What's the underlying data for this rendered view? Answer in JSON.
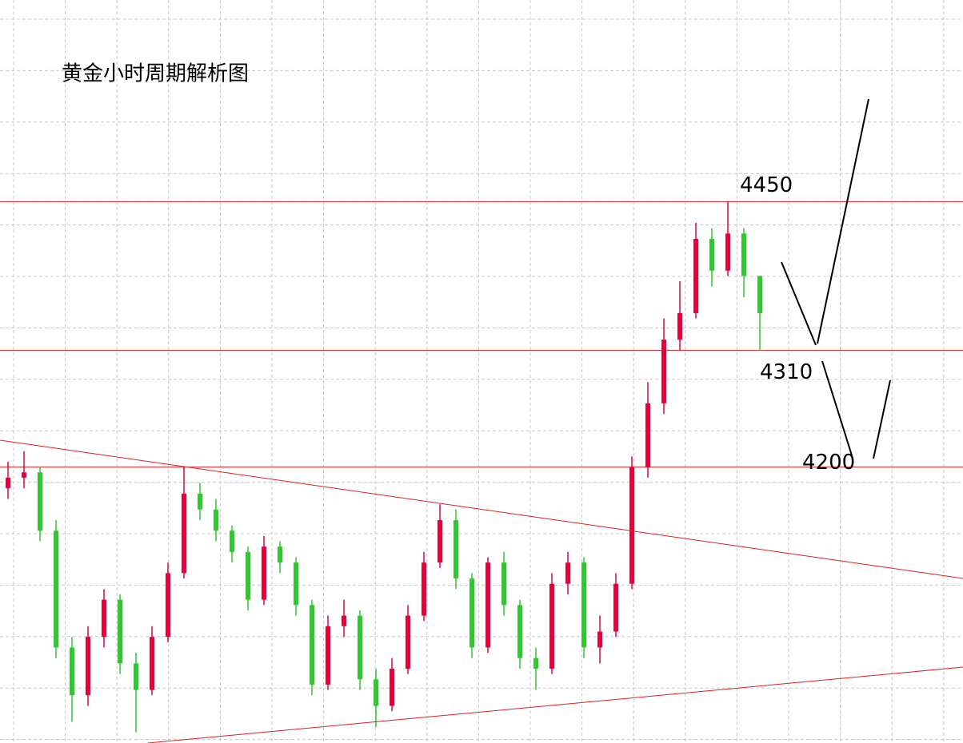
{
  "chart_data": {
    "type": "candlestick",
    "title": "黄金小时周期解析图",
    "open": [
      4180,
      4190,
      4195,
      4140,
      4030,
      3985,
      4040,
      4075,
      4015,
      3990,
      4040,
      4100,
      4175,
      4160,
      4140,
      4120,
      4075,
      4125,
      4110,
      4070,
      3995,
      4050,
      4060,
      4000,
      3975,
      4010,
      4060,
      4110,
      4150,
      4095,
      4030,
      4110,
      4070,
      4020,
      4010,
      4090,
      4110,
      4030,
      4045,
      4090,
      4200,
      4260,
      4320,
      4345,
      4415,
      4385,
      4420,
      4380
    ],
    "high": [
      4205,
      4215,
      4200,
      4150,
      4040,
      4050,
      4085,
      4080,
      4025,
      4050,
      4110,
      4200,
      4185,
      4170,
      4145,
      4125,
      4135,
      4130,
      4115,
      4075,
      4060,
      4075,
      4065,
      4010,
      4020,
      4070,
      4120,
      4165,
      4160,
      4100,
      4115,
      4120,
      4075,
      4030,
      4100,
      4120,
      4115,
      4060,
      4100,
      4210,
      4280,
      4340,
      4375,
      4430,
      4425,
      4450,
      4425,
      4380
    ],
    "low": [
      4170,
      4180,
      4130,
      4020,
      3960,
      3975,
      4030,
      4005,
      3950,
      3985,
      4035,
      4095,
      4150,
      4130,
      4110,
      4065,
      4070,
      4100,
      4060,
      3985,
      3990,
      4040,
      3990,
      3955,
      3970,
      4005,
      4055,
      4105,
      4085,
      4020,
      4025,
      4060,
      4010,
      3990,
      4005,
      4080,
      4020,
      4015,
      4040,
      4085,
      4190,
      4250,
      4310,
      4340,
      4370,
      4380,
      4360,
      4310
    ],
    "close": [
      4190,
      4195,
      4140,
      4030,
      3985,
      4040,
      4075,
      4015,
      3990,
      4040,
      4100,
      4175,
      4160,
      4140,
      4120,
      4075,
      4125,
      4110,
      4070,
      3995,
      4050,
      4060,
      4000,
      3975,
      4010,
      4060,
      4110,
      4150,
      4095,
      4030,
      4110,
      4070,
      4020,
      4010,
      4090,
      4110,
      4030,
      4045,
      4090,
      4200,
      4260,
      4320,
      4345,
      4415,
      4385,
      4420,
      4380,
      4345
    ],
    "up_color": "#e8003a",
    "down_color": "#2fc92f",
    "levels": [
      4450,
      4310,
      4200
    ],
    "level_color": "#e02020",
    "ylim": [
      3940,
      4640
    ],
    "grid": true
  }
}
